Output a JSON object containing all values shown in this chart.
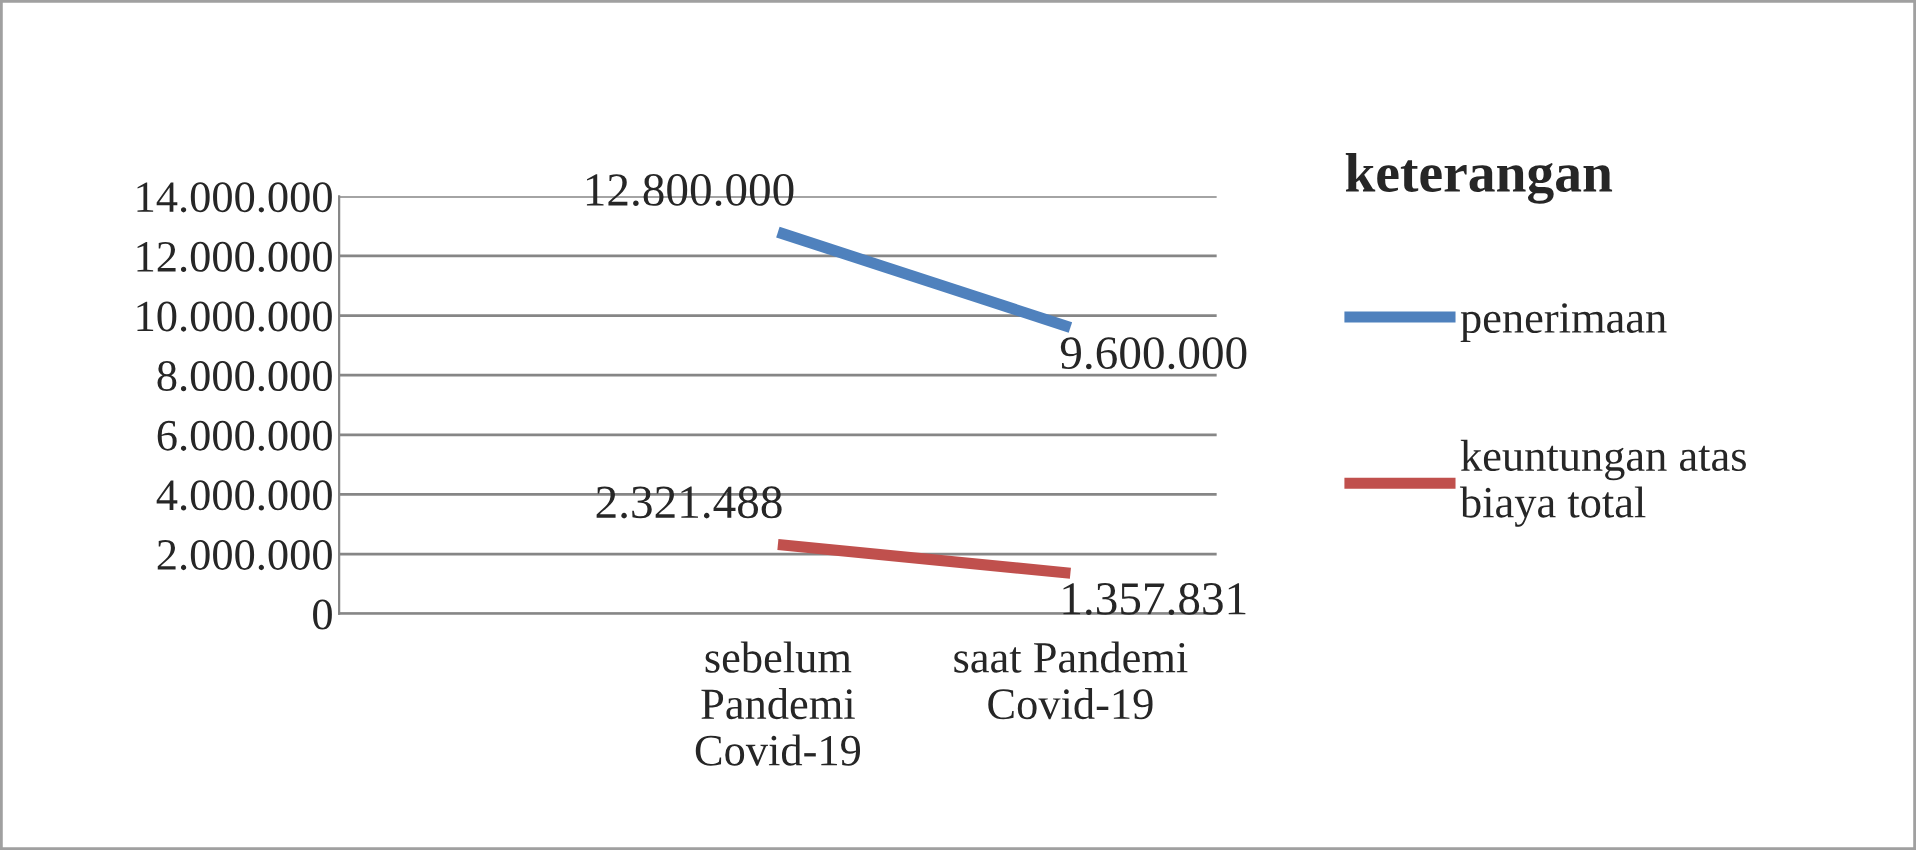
{
  "chart_data": {
    "type": "line",
    "categories": [
      null,
      "sebelum\nPandemi\nCovid-19",
      "saat Pandemi\nCovid-19"
    ],
    "series": [
      {
        "name": "penerimaan",
        "color": "#4f81bd",
        "values": [
          null,
          12800000,
          9600000
        ],
        "value_labels": [
          null,
          "12.800.000",
          "9.600.000"
        ]
      },
      {
        "name": "keuntungan atas\nbiaya total",
        "color": "#c0504d",
        "values": [
          null,
          2321488,
          1357831
        ],
        "value_labels": [
          null,
          "2.321.488",
          "1.357.831"
        ]
      }
    ],
    "ylim": [
      0,
      14000000
    ],
    "yticks": [
      {
        "value": 0,
        "label": "0"
      },
      {
        "value": 2000000,
        "label": "2.000.000"
      },
      {
        "value": 4000000,
        "label": "4.000.000"
      },
      {
        "value": 6000000,
        "label": "6.000.000"
      },
      {
        "value": 8000000,
        "label": "8.000.000"
      },
      {
        "value": 10000000,
        "label": "10.000.000"
      },
      {
        "value": 12000000,
        "label": "12.000.000"
      },
      {
        "value": 14000000,
        "label": "14.000.000"
      }
    ],
    "legend_title": "keterangan",
    "legend": "right",
    "grid": "y",
    "marker": "none",
    "line_style": "solid"
  }
}
